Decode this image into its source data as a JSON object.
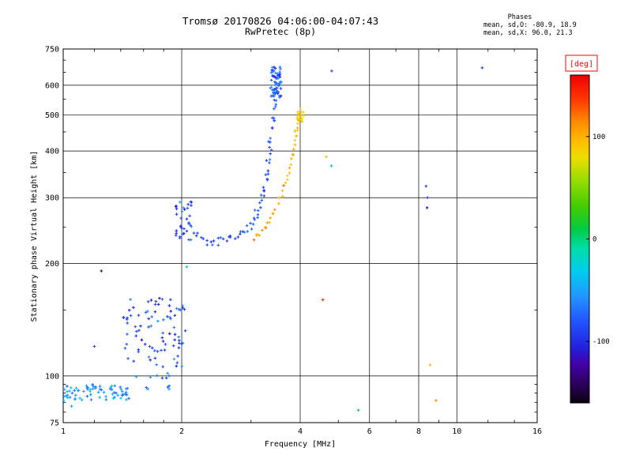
{
  "chart_data": {
    "type": "scatter",
    "title": "Tromsø 20170826 04:06:00-04:07:43",
    "subtitle": "RwPretec (8p)",
    "stats": {
      "header": "Phases",
      "line_o": "mean, sd,O: -80.9, 18.9",
      "line_x": "mean, sd,X:  96.0, 21.3"
    },
    "xlabel": "Frequency [MHz]",
    "ylabel": "Stationary phase Virtual Height [km]",
    "x_scale": "log",
    "x_range": [
      1,
      16
    ],
    "x_ticks": [
      1,
      2,
      4,
      6,
      8,
      10,
      16
    ],
    "x_minor": [
      1.2,
      1.4,
      1.6,
      1.8,
      3,
      5,
      7,
      9,
      12,
      14
    ],
    "y_scale": "log",
    "y_range": [
      75,
      750
    ],
    "y_ticks": [
      75,
      100,
      200,
      300,
      400,
      500,
      600,
      750
    ],
    "y_minor": [
      80,
      85,
      90,
      95,
      150,
      250,
      350,
      450,
      550,
      650,
      700
    ],
    "grid": true,
    "marker": "plus",
    "colorbar": {
      "label": "[deg]",
      "range": [
        -160,
        160
      ],
      "ticks": [
        {
          "value": 100,
          "label": "100"
        },
        {
          "value": 0,
          "label": "0"
        },
        {
          "value": -100,
          "label": "-100"
        }
      ],
      "stops": [
        [
          0.0,
          "#0a0010"
        ],
        [
          0.06,
          "#2d0060"
        ],
        [
          0.12,
          "#4400aa"
        ],
        [
          0.17,
          "#2222dd"
        ],
        [
          0.25,
          "#2255ff"
        ],
        [
          0.33,
          "#2299ff"
        ],
        [
          0.4,
          "#00ccee"
        ],
        [
          0.47,
          "#00ddaa"
        ],
        [
          0.53,
          "#00cc44"
        ],
        [
          0.6,
          "#44cc00"
        ],
        [
          0.68,
          "#99dd00"
        ],
        [
          0.75,
          "#eedd00"
        ],
        [
          0.8,
          "#ffbb00"
        ],
        [
          0.86,
          "#ff8800"
        ],
        [
          0.93,
          "#ff3300"
        ],
        [
          1.0,
          "#ee0000"
        ]
      ]
    },
    "clusters": [
      {
        "name": "e-region-band",
        "f": [
          1.0,
          1.47
        ],
        "h": [
          86,
          95
        ],
        "count": 72,
        "phase": -55,
        "phase_sd": 15
      },
      {
        "name": "e-band-extension",
        "f": [
          1.5,
          1.9
        ],
        "h": [
          92,
          102
        ],
        "count": 12,
        "phase": -70,
        "phase_sd": 12
      },
      {
        "name": "e-scatter",
        "f": [
          1.42,
          2.05
        ],
        "h": [
          105,
          162
        ],
        "count": 85,
        "phase": -85,
        "phase_sd": 16
      },
      {
        "name": "f-foot-scatter",
        "f": [
          1.93,
          2.12
        ],
        "h": [
          225,
          298
        ],
        "count": 32,
        "phase": -85,
        "phase_sd": 16
      },
      {
        "name": "o-top-blob",
        "f": [
          3.36,
          3.58
        ],
        "h": [
          555,
          672
        ],
        "count": 55,
        "phase": -78,
        "phase_sd": 18
      },
      {
        "name": "x-top-cluster",
        "f": [
          3.93,
          4.1
        ],
        "h": [
          475,
          520
        ],
        "count": 14,
        "phase": 84,
        "phase_sd": 8
      }
    ],
    "traces": [
      {
        "name": "o-mode-f-trace",
        "phase": -84,
        "phase_sd": 9,
        "points_per_segment": 3,
        "f_jitter": 0.012,
        "h_jitter": 0.025,
        "points": [
          [
            2.15,
            240
          ],
          [
            2.22,
            233
          ],
          [
            2.32,
            229
          ],
          [
            2.42,
            228
          ],
          [
            2.52,
            229
          ],
          [
            2.62,
            231
          ],
          [
            2.72,
            234
          ],
          [
            2.82,
            239
          ],
          [
            2.92,
            246
          ],
          [
            3.0,
            255
          ],
          [
            3.06,
            264
          ],
          [
            3.12,
            275
          ],
          [
            3.17,
            288
          ],
          [
            3.22,
            303
          ],
          [
            3.26,
            322
          ],
          [
            3.29,
            342
          ],
          [
            3.32,
            366
          ],
          [
            3.34,
            392
          ],
          [
            3.36,
            418
          ],
          [
            3.38,
            446
          ],
          [
            3.4,
            476
          ],
          [
            3.42,
            506
          ],
          [
            3.44,
            538
          ],
          [
            3.455,
            566
          ],
          [
            3.465,
            592
          ],
          [
            3.475,
            618
          ],
          [
            3.485,
            642
          ]
        ]
      },
      {
        "name": "x-mode-f-trace",
        "phase": 98,
        "phase_sd": 11,
        "points_per_segment": 3,
        "f_jitter": 0.007,
        "h_jitter": 0.014,
        "points": [
          [
            3.05,
            232
          ],
          [
            3.15,
            240
          ],
          [
            3.25,
            250
          ],
          [
            3.35,
            262
          ],
          [
            3.45,
            276
          ],
          [
            3.55,
            294
          ],
          [
            3.64,
            317
          ],
          [
            3.72,
            343
          ],
          [
            3.78,
            369
          ],
          [
            3.83,
            394
          ],
          [
            3.87,
            419
          ],
          [
            3.9,
            444
          ],
          [
            3.93,
            464
          ],
          [
            3.96,
            483
          ],
          [
            3.99,
            499
          ],
          [
            4.02,
            510
          ]
        ]
      }
    ],
    "outliers": [
      [
        4.81,
        655,
        -85
      ],
      [
        11.6,
        668,
        -88
      ],
      [
        4.66,
        386,
        96
      ],
      [
        4.8,
        365,
        -42
      ],
      [
        8.35,
        322,
        -84
      ],
      [
        8.42,
        300,
        -86
      ],
      [
        8.4,
        282,
        -120
      ],
      [
        2.06,
        196,
        -38
      ],
      [
        1.25,
        191,
        -140
      ],
      [
        4.57,
        160,
        142
      ],
      [
        8.55,
        107,
        100
      ],
      [
        8.85,
        86,
        112
      ],
      [
        5.62,
        81,
        8
      ],
      [
        1.05,
        83,
        -45
      ],
      [
        1.2,
        120,
        -85
      ],
      [
        1.98,
        292,
        -40
      ],
      [
        2.02,
        282,
        -45
      ]
    ]
  }
}
